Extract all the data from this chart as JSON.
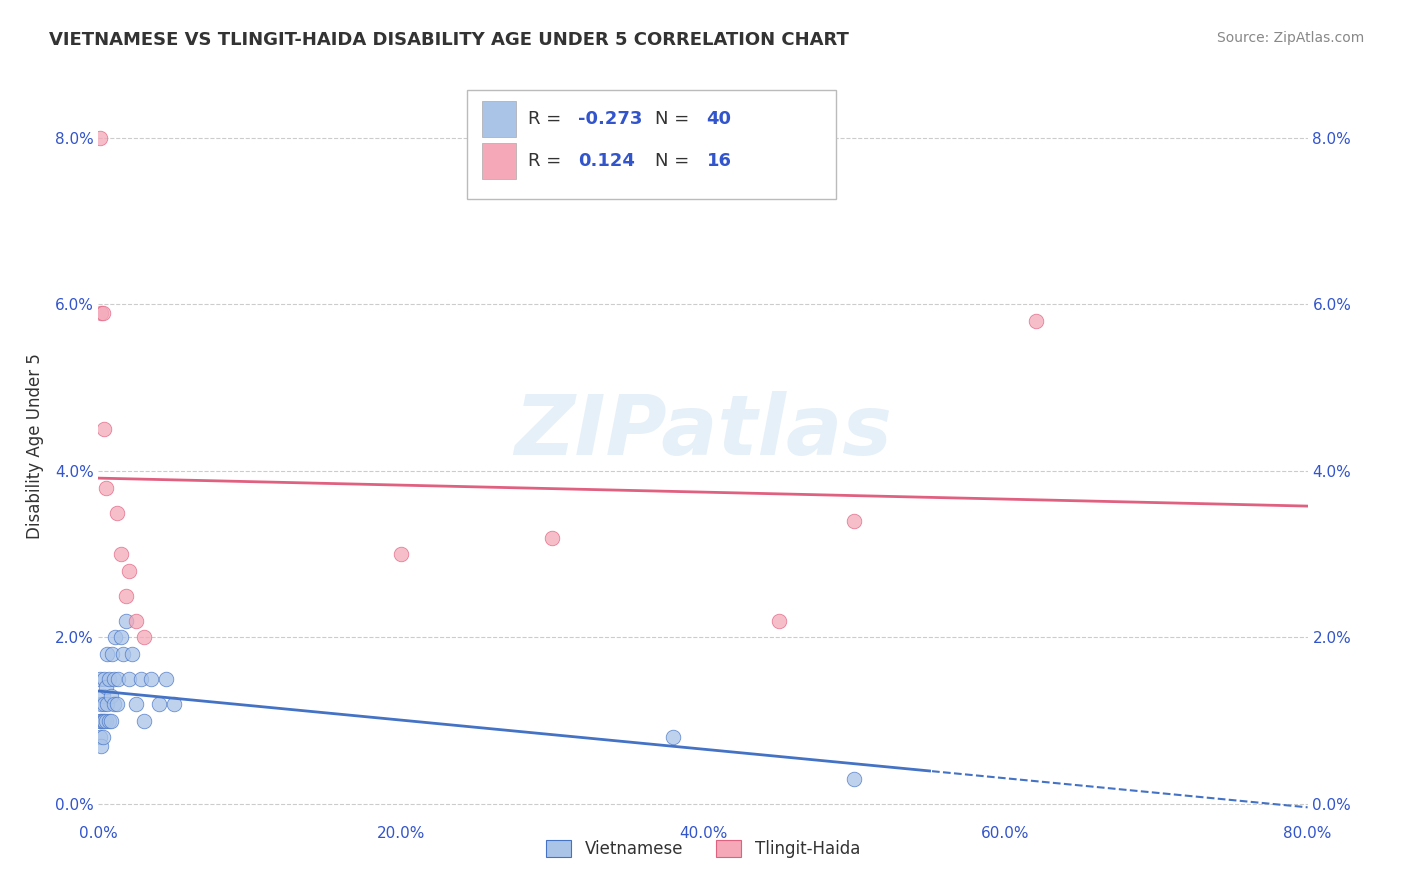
{
  "title": "VIETNAMESE VS TLINGIT-HAIDA DISABILITY AGE UNDER 5 CORRELATION CHART",
  "source": "Source: ZipAtlas.com",
  "ylabel": "Disability Age Under 5",
  "xlim": [
    0,
    0.8
  ],
  "ylim": [
    -0.002,
    0.088
  ],
  "xticks": [
    0.0,
    0.2,
    0.4,
    0.6,
    0.8
  ],
  "xtick_labels": [
    "0.0%",
    "20.0%",
    "40.0%",
    "60.0%",
    "80.0%"
  ],
  "yticks": [
    0.0,
    0.02,
    0.04,
    0.06,
    0.08
  ],
  "ytick_labels": [
    "0.0%",
    "2.0%",
    "4.0%",
    "6.0%",
    "8.0%"
  ],
  "vietnamese_x": [
    0.001,
    0.001,
    0.001,
    0.002,
    0.002,
    0.002,
    0.003,
    0.003,
    0.003,
    0.004,
    0.004,
    0.004,
    0.005,
    0.005,
    0.006,
    0.006,
    0.007,
    0.007,
    0.008,
    0.008,
    0.009,
    0.01,
    0.01,
    0.011,
    0.012,
    0.013,
    0.015,
    0.016,
    0.018,
    0.02,
    0.022,
    0.025,
    0.028,
    0.03,
    0.035,
    0.04,
    0.045,
    0.05,
    0.38,
    0.5
  ],
  "vietnamese_y": [
    0.015,
    0.01,
    0.008,
    0.012,
    0.01,
    0.007,
    0.013,
    0.01,
    0.008,
    0.012,
    0.015,
    0.01,
    0.01,
    0.014,
    0.012,
    0.018,
    0.015,
    0.01,
    0.013,
    0.01,
    0.018,
    0.015,
    0.012,
    0.02,
    0.012,
    0.015,
    0.02,
    0.018,
    0.022,
    0.015,
    0.018,
    0.012,
    0.015,
    0.01,
    0.015,
    0.012,
    0.015,
    0.012,
    0.008,
    0.003
  ],
  "tlingit_x": [
    0.001,
    0.002,
    0.003,
    0.004,
    0.005,
    0.012,
    0.015,
    0.018,
    0.02,
    0.025,
    0.03,
    0.2,
    0.3,
    0.45,
    0.5,
    0.62
  ],
  "tlingit_y": [
    0.08,
    0.059,
    0.059,
    0.045,
    0.038,
    0.035,
    0.03,
    0.025,
    0.028,
    0.022,
    0.02,
    0.03,
    0.032,
    0.022,
    0.034,
    0.058
  ],
  "vietnamese_color": "#aac4e8",
  "tlingit_color": "#f4a8b8",
  "vietnamese_line_color": "#4472c4",
  "tlingit_line_color": "#e06080",
  "r_vietnamese": "-0.273",
  "n_vietnamese": "40",
  "r_tlingit": "0.124",
  "n_tlingit": "16",
  "legend_labels": [
    "Vietnamese",
    "Tlingit-Haida"
  ],
  "watermark": "ZIPatlas",
  "background_color": "#ffffff",
  "grid_color": "#cccccc",
  "value_color": "#3355cc",
  "label_color": "#333333"
}
